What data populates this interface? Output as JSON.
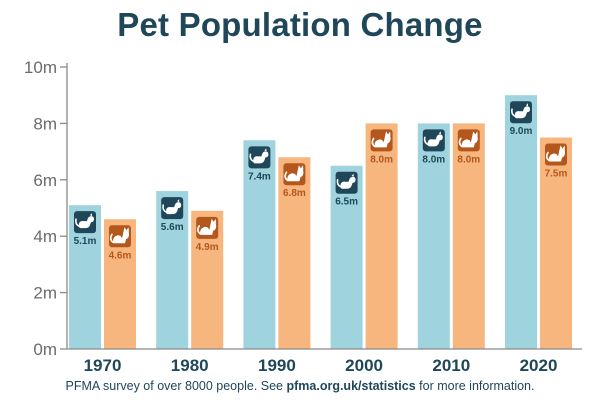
{
  "chart_data": {
    "type": "bar",
    "title": "Pet Population Change",
    "categories": [
      "1970",
      "1980",
      "1990",
      "2000",
      "2010",
      "2020"
    ],
    "series": [
      {
        "icon": "dog-icon",
        "color": "#9fd4de",
        "label_color": "#1f4659",
        "values": [
          5.1,
          5.6,
          7.4,
          6.5,
          8.0,
          9.0
        ],
        "labels": [
          "5.1m",
          "5.6m",
          "7.4m",
          "6.5m",
          "8.0m",
          "9.0m"
        ]
      },
      {
        "icon": "cat-icon",
        "color": "#f7b67e",
        "label_color": "#b3571d",
        "values": [
          4.6,
          4.9,
          6.8,
          8.0,
          8.0,
          7.5
        ],
        "labels": [
          "4.6m",
          "4.9m",
          "6.8m",
          "8.0m",
          "8.0m",
          "7.5m"
        ]
      }
    ],
    "yticks": [
      0,
      2,
      4,
      6,
      8,
      10
    ],
    "ytick_labels": [
      "0m",
      "2m",
      "4m",
      "6m",
      "8m",
      "10m"
    ],
    "ylim": [
      0,
      10
    ],
    "grid": false
  },
  "footer": {
    "prefix": "PFMA survey of over 8000 people. See ",
    "link": "pfma.org.uk/statistics",
    "suffix": " for more information."
  }
}
